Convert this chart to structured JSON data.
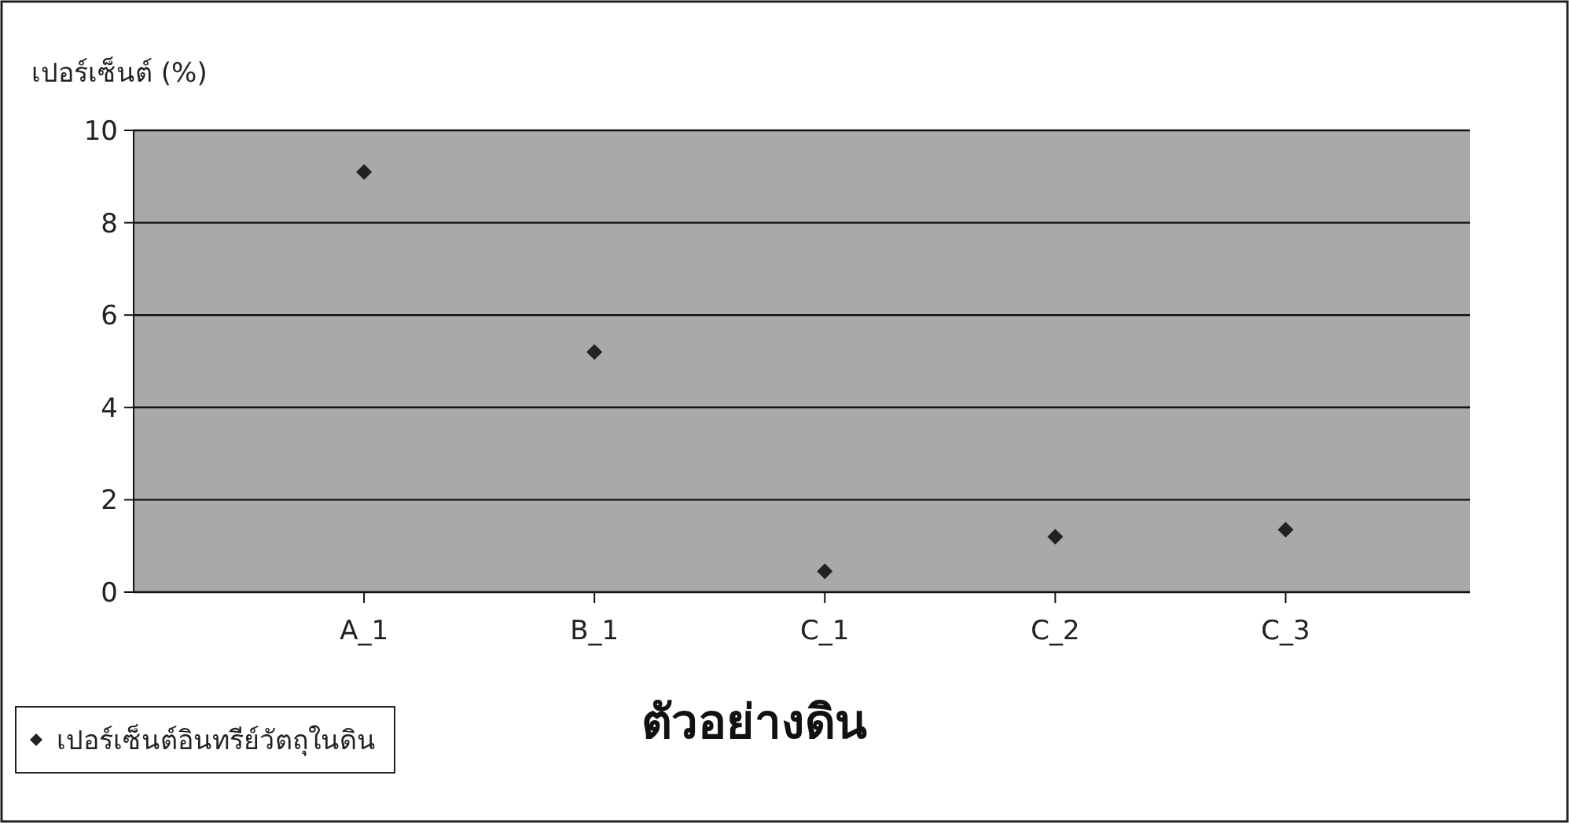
{
  "chart_data": {
    "type": "scatter",
    "ylabel": "เปอร์เซ็นต์ (%)",
    "xlabel": "ตัวอย่างดิน",
    "categories": [
      "A_1",
      "B_1",
      "C_1",
      "C_2",
      "C_3"
    ],
    "series": [
      {
        "name": "เปอร์เซ็นต์อินทรีย์วัตถุในดิน",
        "color": "#222222",
        "values": [
          9.1,
          5.2,
          0.45,
          1.2,
          1.35
        ]
      }
    ],
    "ylim": [
      0,
      10
    ],
    "yticks": [
      0,
      2,
      4,
      6,
      8,
      10
    ],
    "grid": "y",
    "legend": "bottom left",
    "marker": "diamond"
  }
}
